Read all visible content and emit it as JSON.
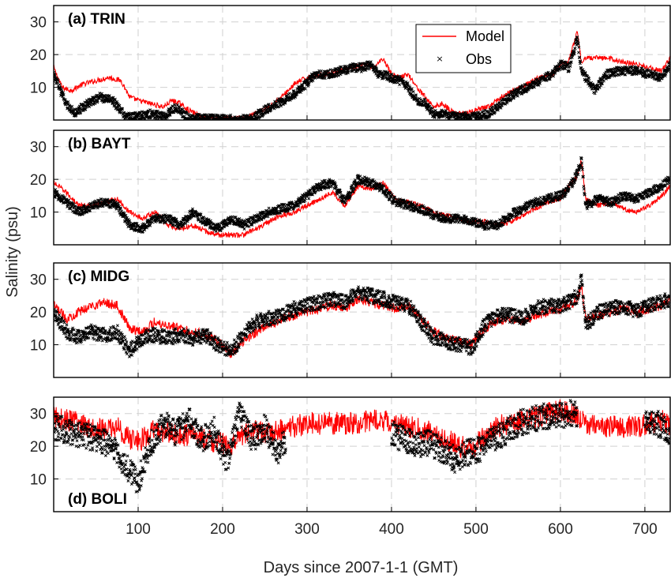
{
  "chart_data": {
    "type": "line",
    "xlabel": "Days since 2007-1-1 (GMT)",
    "ylabel": "Salinity (psu)",
    "xlim": [
      0,
      730
    ],
    "ylim": [
      0,
      35
    ],
    "x_ticks": [
      100,
      200,
      300,
      400,
      500,
      600,
      700
    ],
    "y_ticks": [
      10,
      20,
      30
    ],
    "grid": true,
    "colors": {
      "model": "#ff0000",
      "obs": "#000000"
    },
    "legend": {
      "placement": "top-right-of-first-panel",
      "entries": [
        {
          "label": "Model",
          "marker": "line",
          "color": "#ff0000"
        },
        {
          "label": "Obs",
          "marker": "x",
          "color": "#000000"
        }
      ]
    },
    "panels": [
      {
        "label": "(a) TRIN",
        "label_position": "top-left",
        "model": {
          "x": [
            0,
            10,
            20,
            35,
            50,
            65,
            80,
            90,
            100,
            115,
            130,
            140,
            150,
            160,
            175,
            190,
            210,
            225,
            240,
            255,
            270,
            285,
            300,
            320,
            340,
            355,
            370,
            380,
            390,
            400,
            410,
            420,
            430,
            440,
            450,
            460,
            475,
            490,
            500,
            515,
            530,
            545,
            560,
            575,
            590,
            600,
            610,
            620,
            625,
            630,
            640,
            655,
            670,
            690,
            705,
            720,
            730
          ],
          "y": [
            16,
            10,
            9,
            11,
            12,
            13,
            12,
            7,
            6,
            5,
            4,
            6,
            5,
            3,
            1,
            0.5,
            0.5,
            0.5,
            2,
            4,
            7,
            11,
            13,
            14,
            15,
            16,
            17,
            16,
            19,
            14,
            13,
            14,
            10,
            7,
            4,
            5,
            2,
            2,
            3,
            4,
            7,
            9,
            11,
            13,
            14,
            17,
            18,
            27,
            17,
            19,
            19,
            19,
            18,
            17,
            16,
            15,
            19
          ]
        },
        "obs": {
          "x": [
            0,
            8,
            15,
            25,
            40,
            55,
            70,
            85,
            100,
            115,
            130,
            145,
            160,
            175,
            190,
            205,
            220,
            235,
            250,
            265,
            280,
            295,
            310,
            325,
            340,
            355,
            365,
            375,
            385,
            400,
            410,
            420,
            430,
            440,
            450,
            460,
            475,
            490,
            500,
            515,
            530,
            545,
            560,
            575,
            590,
            600,
            610,
            620,
            625,
            630,
            640,
            655,
            670,
            690,
            705,
            720,
            730
          ],
          "y": [
            14,
            9,
            5,
            2,
            5,
            7,
            6,
            1,
            1,
            2,
            1,
            4,
            0.5,
            0.5,
            0.3,
            0.3,
            0.3,
            0.5,
            3,
            5,
            7,
            10,
            14,
            14,
            15,
            16,
            16,
            17,
            14,
            13,
            12,
            10,
            6,
            5,
            2,
            2,
            1,
            1,
            1,
            2,
            5,
            8,
            10,
            12,
            14,
            17,
            16,
            25,
            15,
            13,
            9,
            14,
            15,
            15,
            14,
            13,
            17
          ]
        }
      },
      {
        "label": "(b) BAYT",
        "label_position": "top-left",
        "model": {
          "x": [
            0,
            15,
            30,
            45,
            60,
            75,
            90,
            105,
            120,
            135,
            150,
            165,
            180,
            195,
            210,
            225,
            240,
            255,
            270,
            285,
            300,
            315,
            330,
            345,
            360,
            375,
            390,
            405,
            420,
            435,
            450,
            465,
            480,
            495,
            510,
            525,
            540,
            555,
            570,
            585,
            600,
            610,
            620,
            625,
            630,
            645,
            660,
            675,
            690,
            705,
            720,
            730
          ],
          "y": [
            19,
            16,
            12,
            12,
            13,
            14,
            10,
            8,
            10,
            6,
            5,
            6,
            4,
            3,
            3,
            3,
            5,
            7,
            9,
            10,
            12,
            14,
            16,
            12,
            18,
            17,
            19,
            14,
            13,
            12,
            10,
            9,
            8,
            7,
            7,
            6,
            7,
            9,
            11,
            13,
            14,
            18,
            21,
            26,
            14,
            12,
            13,
            11,
            10,
            12,
            15,
            18
          ]
        },
        "obs": {
          "x": [
            0,
            15,
            30,
            45,
            60,
            75,
            90,
            105,
            120,
            135,
            150,
            165,
            180,
            195,
            210,
            225,
            240,
            255,
            270,
            285,
            300,
            315,
            330,
            345,
            360,
            375,
            390,
            405,
            420,
            435,
            450,
            465,
            480,
            495,
            510,
            525,
            540,
            555,
            570,
            585,
            600,
            610,
            620,
            625,
            630,
            645,
            660,
            675,
            690,
            705,
            720,
            730
          ],
          "y": [
            16,
            13,
            10,
            12,
            13,
            12,
            6,
            5,
            8,
            8,
            6,
            10,
            7,
            5,
            8,
            6,
            8,
            10,
            11,
            12,
            15,
            18,
            19,
            13,
            20,
            19,
            17,
            13,
            12,
            11,
            9,
            8,
            8,
            7,
            6,
            6,
            9,
            11,
            13,
            14,
            15,
            17,
            22,
            26,
            12,
            14,
            13,
            15,
            14,
            16,
            18,
            20
          ]
        }
      },
      {
        "label": "(c) MIDG",
        "label_position": "top-left",
        "model": {
          "x": [
            0,
            15,
            30,
            45,
            60,
            75,
            90,
            105,
            120,
            135,
            150,
            165,
            180,
            195,
            210,
            225,
            240,
            255,
            270,
            285,
            300,
            315,
            330,
            345,
            360,
            375,
            390,
            405,
            420,
            435,
            450,
            465,
            480,
            495,
            510,
            525,
            540,
            555,
            570,
            585,
            600,
            610,
            620,
            625,
            630,
            645,
            660,
            675,
            690,
            705,
            720,
            730
          ],
          "y": [
            22,
            18,
            20,
            22,
            23,
            22,
            15,
            14,
            17,
            16,
            15,
            14,
            13,
            11,
            7,
            11,
            14,
            16,
            18,
            19,
            20,
            21,
            22,
            21,
            24,
            23,
            22,
            21,
            22,
            18,
            14,
            12,
            11,
            10,
            15,
            17,
            18,
            17,
            19,
            20,
            21,
            22,
            24,
            28,
            18,
            19,
            20,
            21,
            20,
            21,
            22,
            23
          ]
        },
        "obs": {
          "x": [
            0,
            15,
            30,
            45,
            60,
            75,
            90,
            105,
            120,
            135,
            150,
            165,
            180,
            195,
            210,
            225,
            240,
            255,
            270,
            285,
            300,
            315,
            330,
            345,
            360,
            375,
            390,
            405,
            420,
            435,
            450,
            465,
            480,
            495,
            510,
            525,
            540,
            555,
            570,
            585,
            600,
            610,
            620,
            625,
            630,
            645,
            660,
            675,
            690,
            705,
            720,
            730
          ],
          "y": [
            20,
            14,
            12,
            14,
            13,
            14,
            8,
            12,
            13,
            12,
            13,
            12,
            13,
            10,
            8,
            13,
            17,
            18,
            19,
            21,
            22,
            23,
            24,
            23,
            26,
            25,
            24,
            23,
            22,
            17,
            12,
            11,
            10,
            9,
            16,
            19,
            19,
            18,
            21,
            22,
            22,
            23,
            25,
            30,
            16,
            20,
            21,
            22,
            20,
            22,
            23,
            24
          ]
        }
      },
      {
        "label": "(d) BOLI",
        "label_position": "bottom-left",
        "model": {
          "x": [
            0,
            15,
            30,
            45,
            60,
            75,
            90,
            105,
            120,
            135,
            150,
            165,
            180,
            195,
            210,
            225,
            240,
            255,
            270,
            285,
            300,
            315,
            330,
            345,
            360,
            375,
            390,
            405,
            420,
            435,
            450,
            465,
            480,
            495,
            510,
            525,
            540,
            555,
            570,
            585,
            600,
            610,
            620,
            625,
            630,
            645,
            660,
            675,
            690,
            705,
            720,
            730
          ],
          "y": [
            29,
            28,
            27,
            26,
            25,
            26,
            22,
            22,
            25,
            24,
            23,
            24,
            22,
            21,
            20,
            24,
            25,
            24,
            25,
            26,
            27,
            27,
            27,
            27,
            27,
            28,
            28,
            27,
            26,
            25,
            24,
            22,
            20,
            19,
            23,
            26,
            27,
            28,
            29,
            30,
            31,
            30,
            29,
            28,
            27,
            26,
            26,
            26,
            26,
            27,
            28,
            26
          ]
        },
        "obs": {
          "x": [
            0,
            12,
            25,
            40,
            55,
            70,
            85,
            100,
            115,
            130,
            145,
            160,
            175,
            190,
            205,
            220,
            235,
            250,
            265,
            275,
            400,
            415,
            430,
            445,
            460,
            475,
            490,
            505,
            520,
            535,
            550,
            565,
            580,
            595,
            610,
            620,
            700,
            715,
            730
          ],
          "y": [
            26,
            25,
            24,
            23,
            22,
            20,
            14,
            9,
            21,
            27,
            24,
            28,
            22,
            25,
            15,
            30,
            22,
            26,
            18,
            22,
            24,
            22,
            20,
            21,
            19,
            16,
            18,
            19,
            22,
            24,
            27,
            28,
            29,
            29,
            30,
            30,
            27,
            27,
            24
          ]
        }
      }
    ]
  }
}
